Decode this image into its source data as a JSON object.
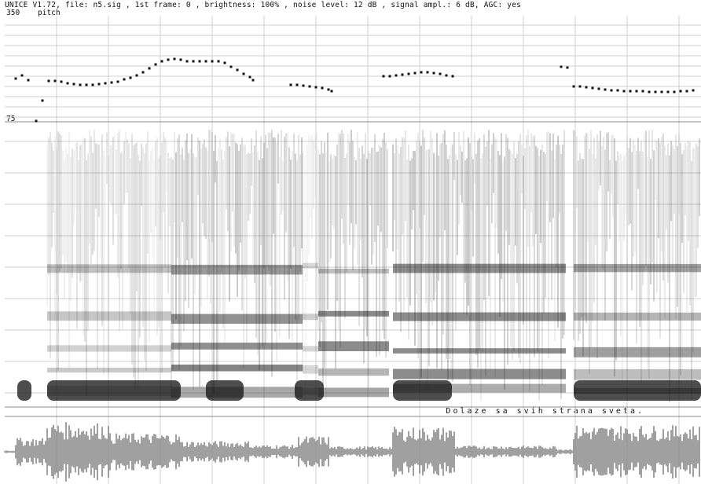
{
  "header": {
    "status_line": "UNICE V1.72, file: n5.sig , 1st frame: 0 , brightness: 100% , noise level: 12 dB , signal ampl.: 6 dB, AGC: yes"
  },
  "pitch_panel": {
    "top_value": "350",
    "title": "pitch",
    "bottom_value": "75"
  },
  "caption": {
    "text": "Dolaze sa svih strana sveta."
  },
  "colors": {
    "grid": "#cfcfcf",
    "trace": "#111111",
    "background": "#ffffff"
  }
}
